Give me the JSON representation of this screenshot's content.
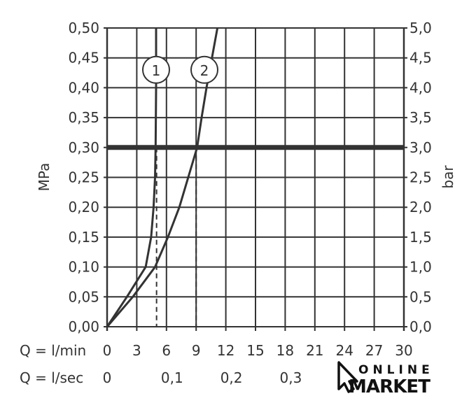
{
  "chart_data": {
    "type": "line",
    "ylabel_left": "MPa",
    "ylabel_right": "bar",
    "ylim": [
      0,
      0.5
    ],
    "ylim_right": [
      0,
      5.0
    ],
    "xlim": [
      0,
      30
    ],
    "grid": true,
    "y_ticks_left": [
      "0,00",
      "0,05",
      "0,10",
      "0,15",
      "0,20",
      "0,25",
      "0,30",
      "0,35",
      "0,40",
      "0,45",
      "0,50"
    ],
    "y_ticks_right": [
      "0,0",
      "0,5",
      "1,0",
      "1,5",
      "2,0",
      "2,5",
      "3,0",
      "3,5",
      "4,0",
      "4,5",
      "5,0"
    ],
    "x_label_lmin": "Q = l/min",
    "x_ticks_lmin": [
      "0",
      "3",
      "6",
      "9",
      "12",
      "15",
      "18",
      "21",
      "24",
      "27",
      "30"
    ],
    "x_label_lsec": "Q = l/sec",
    "x_ticks_lsec": [
      {
        "label": "0",
        "value": 0
      },
      {
        "label": "0,1",
        "value": 6
      },
      {
        "label": "0,2",
        "value": 12
      },
      {
        "label": "0,3",
        "value": 18
      }
    ],
    "reference_line": {
      "y": 0.3
    },
    "series": [
      {
        "name": "1",
        "x": [
          0,
          2.0,
          3.9,
          4.45,
          4.7,
          4.85,
          4.9,
          4.95,
          4.95
        ],
        "y": [
          0,
          0.05,
          0.1,
          0.15,
          0.2,
          0.25,
          0.3,
          0.4,
          0.5
        ],
        "marker_x": 5.0
      },
      {
        "name": "2",
        "x": [
          0,
          2.6,
          4.85,
          6.15,
          7.3,
          8.2,
          9.1,
          9.55,
          10.05,
          10.6,
          11.15
        ],
        "y": [
          0,
          0.05,
          0.1,
          0.15,
          0.2,
          0.25,
          0.3,
          0.35,
          0.4,
          0.45,
          0.5
        ],
        "marker_x": 9.0
      }
    ],
    "colors": {
      "line": "#333333",
      "grid": "#333333"
    }
  },
  "logo": {
    "line1": "ONLINE",
    "line2": "MARKET"
  }
}
